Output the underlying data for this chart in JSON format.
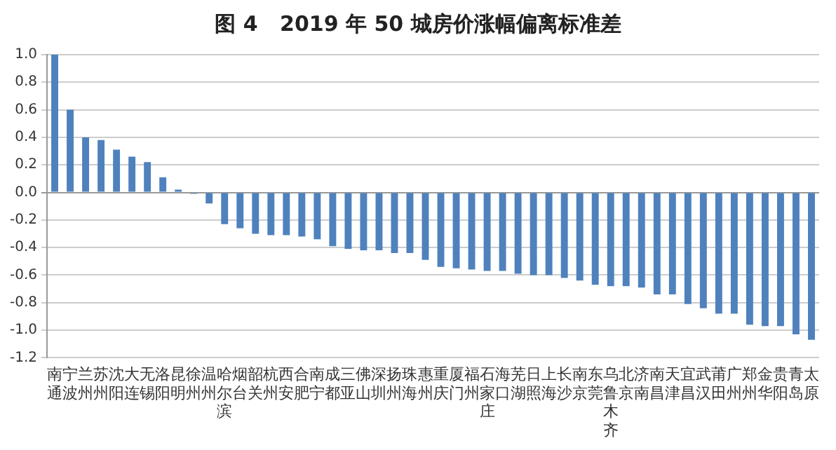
{
  "chart_data": {
    "type": "bar",
    "title": "图 4   2019 年 50 城房价涨幅偏离标准差",
    "categories": [
      "南通",
      "宁波",
      "兰州",
      "苏州",
      "沈阳",
      "大连",
      "无锡",
      "洛阳",
      "昆明",
      "徐州",
      "温州",
      "哈尔滨",
      "烟台",
      "韶关",
      "杭州",
      "西安",
      "合肥",
      "南宁",
      "成都",
      "三亚",
      "佛山",
      "深圳",
      "扬州",
      "珠海",
      "惠州",
      "重庆",
      "厦门",
      "福州",
      "石家庄",
      "海口",
      "芜湖",
      "日照",
      "上海",
      "长沙",
      "南京",
      "东莞",
      "乌鲁木齐",
      "北京",
      "济南",
      "南昌",
      "天津",
      "宜昌",
      "武汉",
      "莆田",
      "广州",
      "郑州",
      "金华",
      "贵阳",
      "青岛",
      "太原"
    ],
    "values": [
      1.0,
      0.6,
      0.4,
      0.38,
      0.31,
      0.26,
      0.22,
      0.11,
      0.02,
      -0.01,
      -0.08,
      -0.23,
      -0.26,
      -0.3,
      -0.31,
      -0.31,
      -0.32,
      -0.34,
      -0.39,
      -0.41,
      -0.42,
      -0.42,
      -0.44,
      -0.44,
      -0.49,
      -0.54,
      -0.55,
      -0.56,
      -0.57,
      -0.57,
      -0.59,
      -0.6,
      -0.6,
      -0.62,
      -0.64,
      -0.67,
      -0.68,
      -0.68,
      -0.69,
      -0.74,
      -0.74,
      -0.81,
      -0.84,
      -0.88,
      -0.88,
      -0.96,
      -0.97,
      -0.97,
      -1.03,
      -1.07
    ],
    "color": "#4f81bd",
    "ylim": [
      -1.2,
      1.0
    ],
    "yticks": [
      {
        "value": -1.2,
        "label": "-1.2"
      },
      {
        "value": -1,
        "label": "-1.0"
      },
      {
        "value": -0.8,
        "label": "-0.8"
      },
      {
        "value": -0.6,
        "label": "-0.6"
      },
      {
        "value": -0.4,
        "label": "-0.4"
      },
      {
        "value": -0.2,
        "label": "-0.2"
      },
      {
        "value": 0,
        "label": "0.0"
      },
      {
        "value": 0.2,
        "label": "0.2"
      },
      {
        "value": 0.4,
        "label": "0.4"
      },
      {
        "value": 0.6,
        "label": "0.6"
      },
      {
        "value": 0.8,
        "label": "0.8"
      },
      {
        "value": 1,
        "label": "1.0"
      }
    ],
    "grid": "y"
  }
}
